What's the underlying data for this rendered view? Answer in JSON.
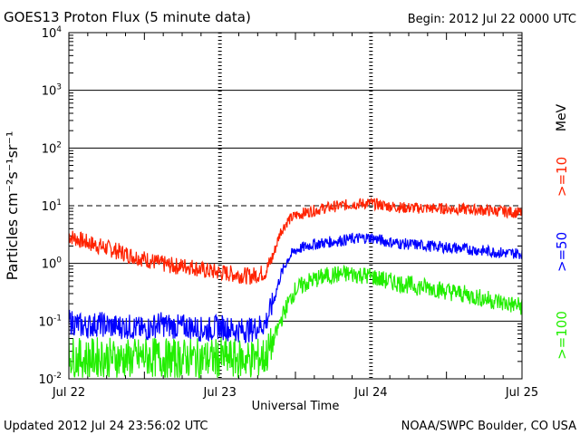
{
  "header": {
    "title": "GOES13 Proton Flux (5 minute data)",
    "begin": "Begin: 2012 Jul 22 0000 UTC"
  },
  "footer": {
    "updated": "Updated 2012 Jul 24 23:56:02 UTC",
    "credit": "NOAA/SWPC Boulder, CO USA"
  },
  "chart_data": {
    "type": "line",
    "title": "GOES13 Proton Flux (5 minute data)",
    "xlabel": "Universal Time",
    "ylabel": "Particles cm⁻²s⁻¹sr⁻¹",
    "yscale": "log",
    "ylim": [
      0.01,
      10000
    ],
    "xlim_days": [
      0,
      3
    ],
    "x_tick_labels": [
      "Jul 22",
      "Jul 23",
      "Jul 24",
      "Jul 25"
    ],
    "y_ticks": [
      {
        "base": "10",
        "exp": "-2",
        "value": 0.01
      },
      {
        "base": "10",
        "exp": "-1",
        "value": 0.1
      },
      {
        "base": "10",
        "exp": "0",
        "value": 1
      },
      {
        "base": "10",
        "exp": "1",
        "value": 10
      },
      {
        "base": "10",
        "exp": "2",
        "value": 100
      },
      {
        "base": "10",
        "exp": "3",
        "value": 1000
      },
      {
        "base": "10",
        "exp": "4",
        "value": 10000
      }
    ],
    "threshold": 10,
    "unit_label": "MeV",
    "grid": true,
    "series": [
      {
        "name": ">=10",
        "color": "#ff2200",
        "x": [
          0,
          0.1,
          0.2,
          0.3,
          0.4,
          0.5,
          0.6,
          0.7,
          0.8,
          0.9,
          1.0,
          1.1,
          1.2,
          1.3,
          1.35,
          1.4,
          1.45,
          1.5,
          1.6,
          1.7,
          1.8,
          1.9,
          2.0,
          2.1,
          2.2,
          2.3,
          2.4,
          2.5,
          2.6,
          2.7,
          2.8,
          2.9,
          3.0
        ],
        "values": [
          3.0,
          2.4,
          2.0,
          1.7,
          1.4,
          1.2,
          1.0,
          0.9,
          0.9,
          0.75,
          0.7,
          0.65,
          0.6,
          0.7,
          1.3,
          3.5,
          5.5,
          6.8,
          8.0,
          9.2,
          10.0,
          10.8,
          11.0,
          10.0,
          9.3,
          9.1,
          9.0,
          8.9,
          8.7,
          8.5,
          8.2,
          7.9,
          7.5
        ]
      },
      {
        "name": ">=50",
        "color": "#0000ff",
        "x": [
          0,
          0.1,
          0.2,
          0.3,
          0.4,
          0.5,
          0.6,
          0.7,
          0.8,
          0.9,
          1.0,
          1.1,
          1.2,
          1.3,
          1.35,
          1.4,
          1.45,
          1.5,
          1.6,
          1.7,
          1.8,
          1.9,
          2.0,
          2.1,
          2.2,
          2.3,
          2.4,
          2.5,
          2.6,
          2.7,
          2.8,
          2.9,
          3.0
        ],
        "values": [
          0.1,
          0.08,
          0.09,
          0.08,
          0.08,
          0.07,
          0.09,
          0.08,
          0.08,
          0.07,
          0.08,
          0.07,
          0.07,
          0.09,
          0.2,
          0.6,
          1.2,
          1.7,
          2.1,
          2.3,
          2.5,
          2.7,
          2.8,
          2.4,
          2.2,
          2.1,
          2.0,
          1.9,
          1.8,
          1.7,
          1.6,
          1.5,
          1.5
        ]
      },
      {
        "name": ">=100",
        "color": "#22ee00",
        "x": [
          0,
          0.1,
          0.2,
          0.3,
          0.4,
          0.5,
          0.6,
          0.7,
          0.8,
          0.9,
          1.0,
          1.1,
          1.2,
          1.3,
          1.35,
          1.4,
          1.45,
          1.5,
          1.6,
          1.7,
          1.8,
          1.9,
          2.0,
          2.1,
          2.2,
          2.3,
          2.4,
          2.5,
          2.6,
          2.7,
          2.8,
          2.9,
          3.0
        ],
        "values": [
          0.025,
          0.022,
          0.024,
          0.023,
          0.022,
          0.024,
          0.023,
          0.022,
          0.023,
          0.022,
          0.023,
          0.022,
          0.022,
          0.024,
          0.04,
          0.1,
          0.2,
          0.35,
          0.5,
          0.6,
          0.65,
          0.65,
          0.6,
          0.5,
          0.45,
          0.4,
          0.38,
          0.33,
          0.3,
          0.26,
          0.23,
          0.2,
          0.18
        ]
      }
    ]
  }
}
